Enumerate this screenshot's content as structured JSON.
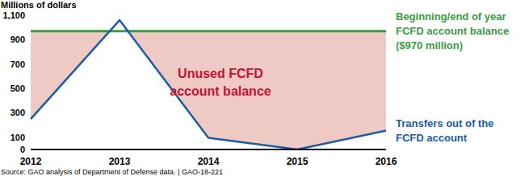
{
  "chart_data": {
    "type": "line",
    "y_label": "Millions of dollars",
    "source": "Source: GAO analysis of Department of Defense data.  |  GAO-18-221",
    "categories": [
      "2012",
      "2013",
      "2014",
      "2015",
      "2016"
    ],
    "series": [
      {
        "name": "Beginning/end of year FCFD account balance ($970 million)",
        "color": "#3a9b45",
        "values": [
          970,
          970,
          970,
          970,
          970
        ]
      },
      {
        "name": "Transfers out of the FCFD account",
        "color": "#1b5ca8",
        "values": [
          250,
          1060,
          95,
          0,
          155
        ]
      }
    ],
    "area": {
      "label": "Unused FCFD account balance",
      "color": "#efcac4",
      "label_color": "#c8102e"
    },
    "ylim": [
      0,
      1100
    ],
    "yticks": [
      0,
      100,
      300,
      500,
      700,
      900,
      {
        "value": 1100,
        "label": "1,100"
      }
    ],
    "grid": false
  }
}
